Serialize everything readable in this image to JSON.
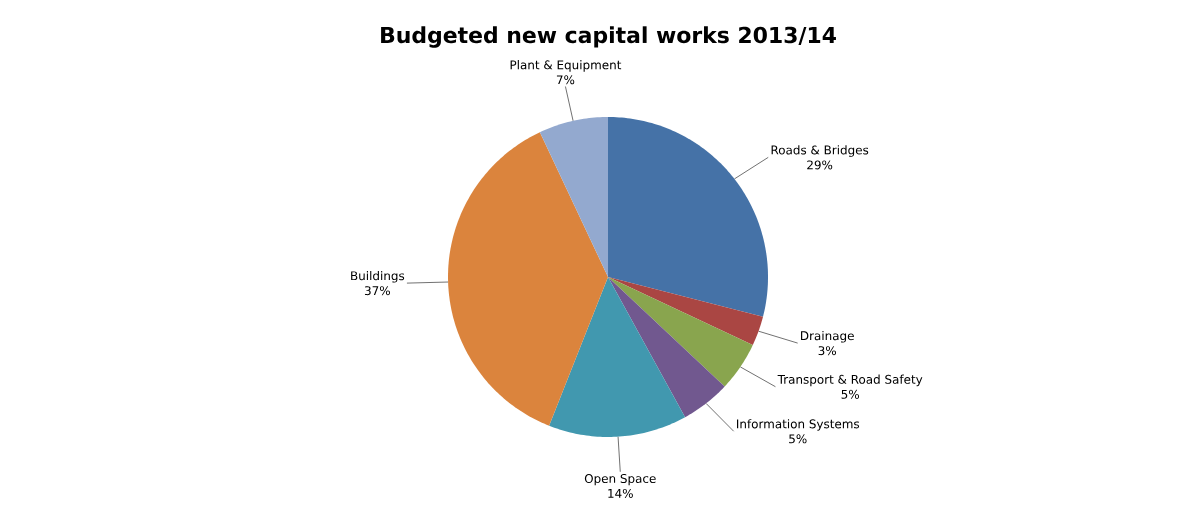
{
  "chart_data": {
    "type": "pie",
    "title": "Budgeted new capital works 2013/14",
    "categories": [
      "Roads & Bridges",
      "Drainage",
      "Transport & Road Safety",
      "Information Systems",
      "Open Space",
      "Buildings",
      "Plant & Equipment"
    ],
    "values": [
      29,
      3,
      5,
      5,
      14,
      37,
      7
    ],
    "value_labels": [
      "29%",
      "3%",
      "5%",
      "5%",
      "14%",
      "37%",
      "7%"
    ],
    "colors": [
      "#4572a7",
      "#aa4643",
      "#89a54e",
      "#71588f",
      "#4198af",
      "#db843d",
      "#93a9cf"
    ]
  }
}
